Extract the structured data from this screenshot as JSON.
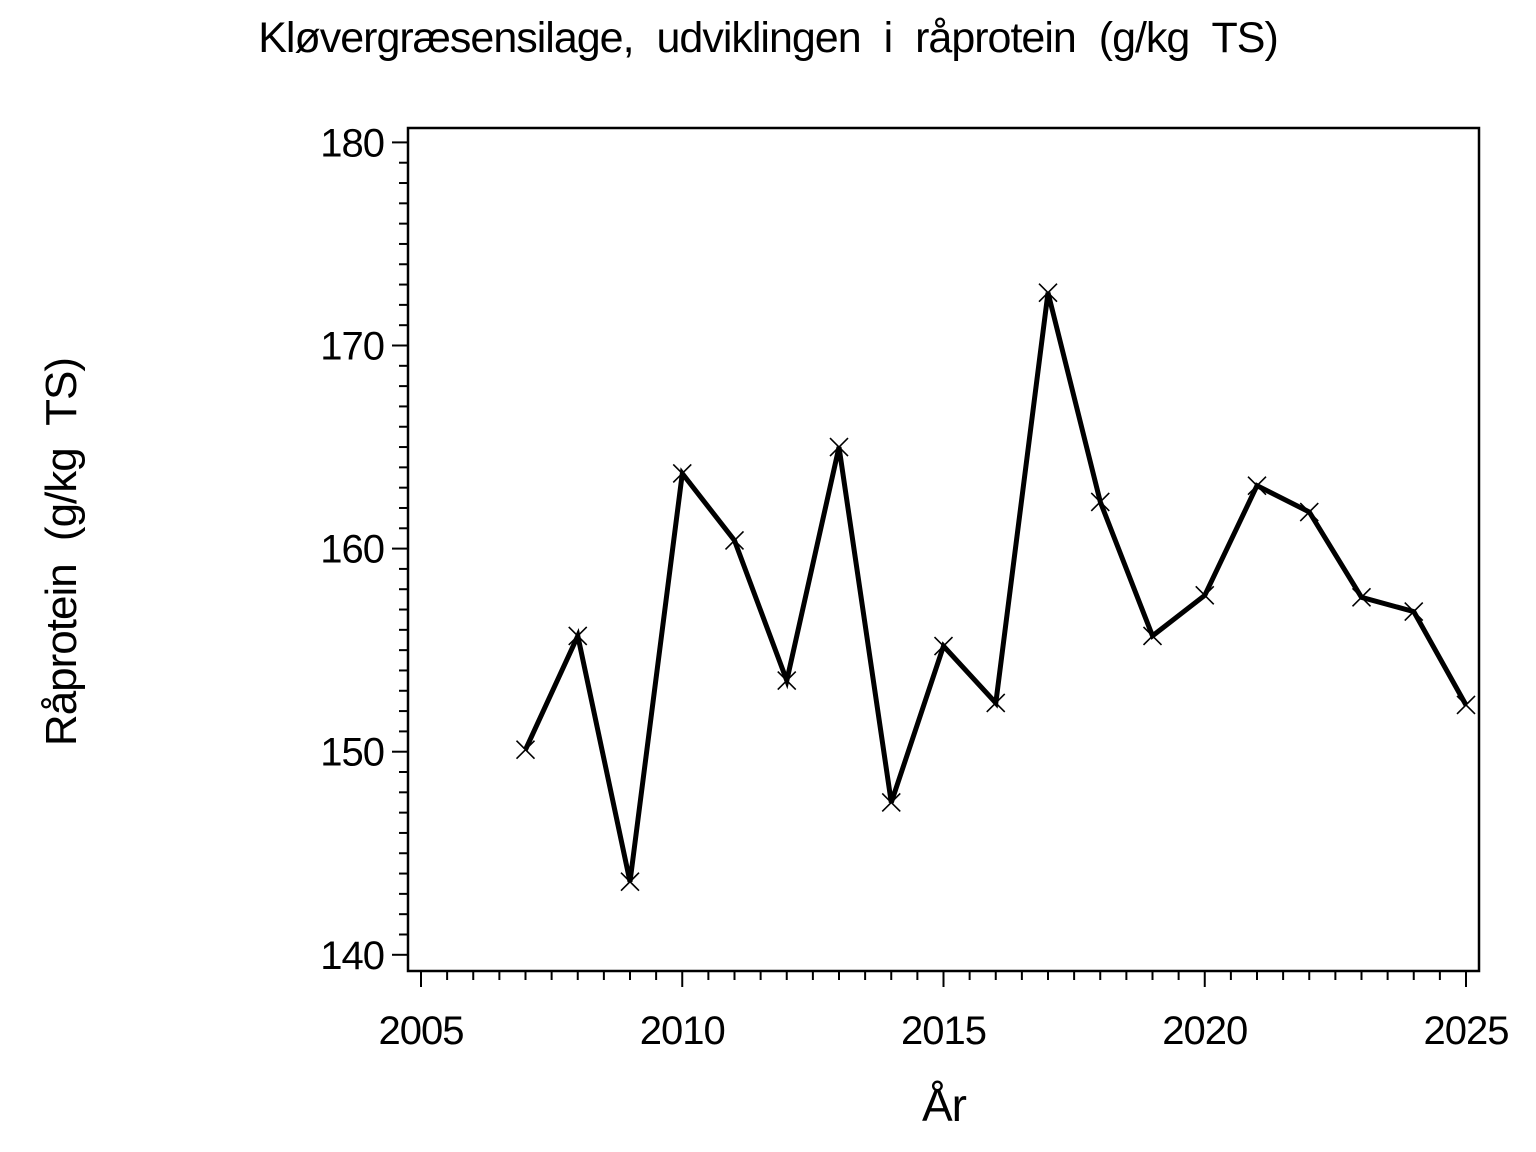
{
  "page": {
    "background": "#ffffff",
    "foreground": "#000000"
  },
  "chart_data": {
    "type": "line",
    "title": "Kløvergræsensilage, udviklingen i råprotein (g/kg TS)",
    "xlabel": "År",
    "ylabel": "Råprotein (g/kg TS)",
    "x": [
      2007,
      2008,
      2009,
      2010,
      2011,
      2012,
      2013,
      2014,
      2015,
      2016,
      2017,
      2018,
      2019,
      2020,
      2021,
      2022,
      2023,
      2024,
      2025
    ],
    "series": [
      {
        "name": "Råprotein",
        "values": [
          150.1,
          155.7,
          143.6,
          163.7,
          160.4,
          153.5,
          165.0,
          147.5,
          155.2,
          152.4,
          172.6,
          162.3,
          155.7,
          157.7,
          163.1,
          161.8,
          157.6,
          156.9,
          152.3
        ]
      }
    ],
    "xlim": [
      2005,
      2025
    ],
    "ylim": [
      140,
      180
    ],
    "xticks_major": [
      2005,
      2010,
      2015,
      2020,
      2025
    ],
    "xtick_minor_interval": 0.5,
    "yticks_major": [
      140,
      150,
      160,
      170,
      180
    ],
    "ytick_minor_interval": 1,
    "grid": false,
    "legend": "none",
    "marker": "x",
    "line_color": "#000000",
    "marker_color": "#000000",
    "frame": true
  }
}
